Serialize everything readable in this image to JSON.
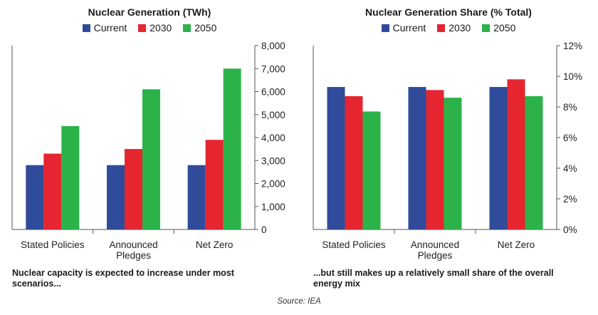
{
  "colors": {
    "current": "#2f4b9a",
    "y2030": "#e52530",
    "y2050": "#2bb34a",
    "axis": "#555555"
  },
  "chart_data": [
    {
      "type": "bar",
      "title": "Nuclear Generation (TWh)",
      "categories": [
        [
          "Stated Policies"
        ],
        [
          "Announced",
          "Pledges"
        ],
        [
          "Net Zero"
        ]
      ],
      "series": [
        {
          "name": "Current",
          "values": [
            2800,
            2800,
            2800
          ]
        },
        {
          "name": "2030",
          "values": [
            3300,
            3500,
            3900
          ]
        },
        {
          "name": "2050",
          "values": [
            4500,
            6100,
            7000
          ]
        }
      ],
      "ylim": [
        0,
        8000
      ],
      "yticks": [
        0,
        1000,
        2000,
        3000,
        4000,
        5000,
        6000,
        7000,
        8000
      ],
      "ytick_labels": [
        "0",
        "1,000",
        "2,000",
        "3,000",
        "4,000",
        "5,000",
        "6,000",
        "7,000",
        "8,000"
      ],
      "xlabel": "",
      "ylabel": "",
      "legend": "top-center",
      "caption": "Nuclear capacity is expected to increase under most scenarios..."
    },
    {
      "type": "bar",
      "title": "Nuclear Generation Share (% Total)",
      "categories": [
        [
          "Stated Policies"
        ],
        [
          "Announced",
          "Pledges"
        ],
        [
          "Net Zero"
        ]
      ],
      "series": [
        {
          "name": "Current",
          "values": [
            9.3,
            9.3,
            9.3
          ]
        },
        {
          "name": "2030",
          "values": [
            8.7,
            9.1,
            9.8
          ]
        },
        {
          "name": "2050",
          "values": [
            7.7,
            8.6,
            8.7
          ]
        }
      ],
      "ylim": [
        0,
        12
      ],
      "yticks": [
        0,
        2,
        4,
        6,
        8,
        10,
        12
      ],
      "ytick_labels": [
        "0%",
        "2%",
        "4%",
        "6%",
        "8%",
        "10%",
        "12%"
      ],
      "xlabel": "",
      "ylabel": "",
      "legend": "top-center",
      "caption": "...but still makes up a relatively small share of the overall energy mix"
    }
  ],
  "source": "Source: IEA"
}
